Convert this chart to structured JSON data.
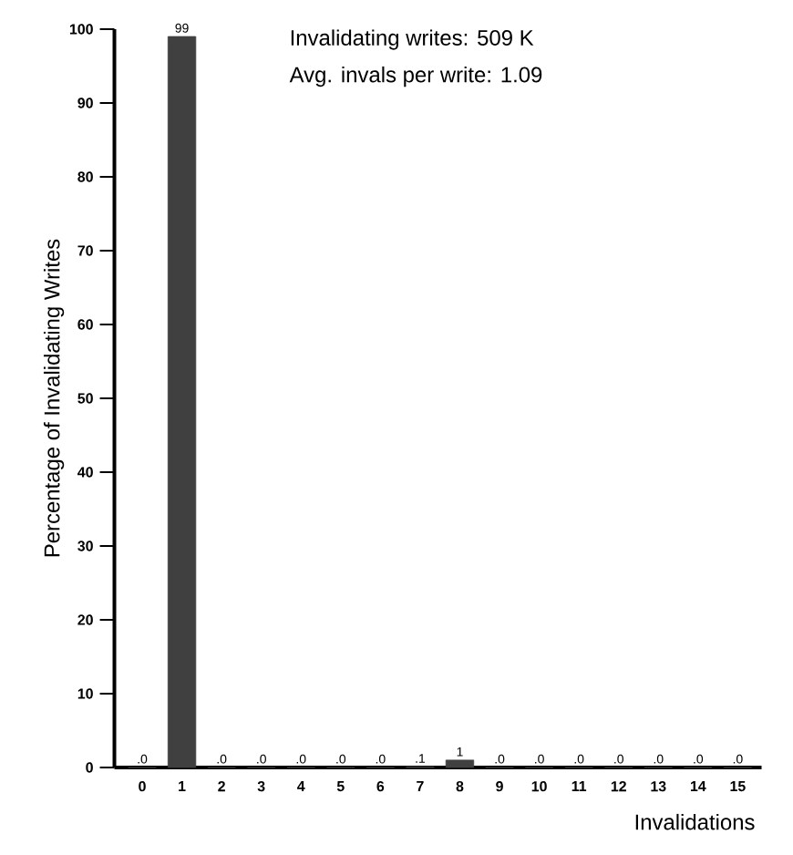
{
  "chart_data": {
    "type": "bar",
    "xlabel": "Invalidations",
    "ylabel": "Percentage of Invalidating Writes",
    "categories": [
      "0",
      "1",
      "2",
      "3",
      "4",
      "5",
      "6",
      "7",
      "8",
      "9",
      "10",
      "11",
      "12",
      "13",
      "14",
      "15"
    ],
    "values": [
      0,
      99,
      0,
      0,
      0,
      0,
      0,
      0.1,
      1,
      0,
      0,
      0,
      0,
      0,
      0,
      0
    ],
    "value_labels": [
      ".0",
      "99",
      ".0",
      ".0",
      ".0",
      ".0",
      ".0",
      ".1",
      "1",
      ".0",
      ".0",
      ".0",
      ".0",
      ".0",
      ".0",
      ".0"
    ],
    "color": "#404040",
    "ylim": [
      0,
      100
    ],
    "yticks": [
      0,
      10,
      20,
      30,
      40,
      50,
      60,
      70,
      80,
      90,
      100
    ],
    "annotations": [
      "Invalidating writes:  509 K",
      "Avg. invals per write:  1.09"
    ],
    "grid": false
  }
}
